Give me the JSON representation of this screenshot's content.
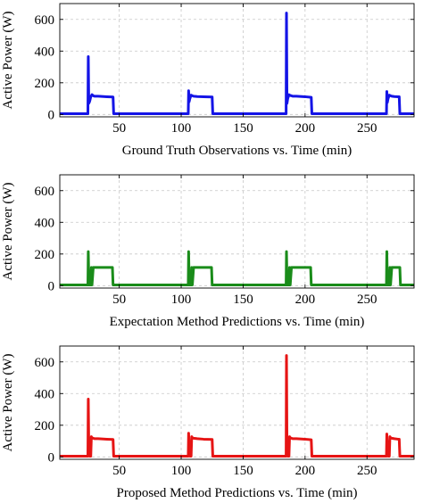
{
  "chart_data": [
    {
      "type": "line",
      "title": "",
      "xlabel": "Ground Truth Observations vs. Time (min)",
      "ylabel": "Active Power (W)",
      "xlim": [
        2,
        288
      ],
      "ylim": [
        -15,
        700
      ],
      "xticks": [
        50,
        100,
        150,
        200,
        250
      ],
      "yticks": [
        0,
        200,
        400,
        600
      ],
      "grid": true,
      "series": [
        {
          "color": "#1414e6",
          "x": [
            2,
            24.7,
            25,
            25.4,
            26,
            26.5,
            27,
            28,
            29,
            30,
            33,
            40,
            45,
            45.5,
            105.7,
            106,
            106.4,
            107,
            108,
            109,
            110,
            113,
            118,
            125,
            125.5,
            184.7,
            185,
            185.4,
            186,
            187,
            188,
            189,
            190,
            193,
            200,
            205,
            205.5,
            265.7,
            266,
            266.4,
            267,
            268,
            269,
            270,
            272,
            275,
            276,
            276.5,
            288
          ],
          "y": [
            5,
            5,
            365,
            70,
            80,
            95,
            112,
            125,
            118,
            115,
            115,
            112,
            110,
            5,
            5,
            150,
            80,
            100,
            122,
            118,
            115,
            113,
            112,
            110,
            5,
            5,
            640,
            70,
            100,
            125,
            120,
            118,
            115,
            115,
            112,
            108,
            5,
            5,
            145,
            75,
            100,
            122,
            118,
            115,
            113,
            112,
            112,
            5,
            5
          ]
        }
      ]
    },
    {
      "type": "line",
      "title": "",
      "xlabel": "Expectation Method Predictions vs. Time (min)",
      "ylabel": "Active Power (W)",
      "xlim": [
        2,
        288
      ],
      "ylim": [
        -15,
        700
      ],
      "xticks": [
        50,
        100,
        150,
        200,
        250
      ],
      "yticks": [
        0,
        200,
        400,
        600
      ],
      "grid": true,
      "series": [
        {
          "color": "#1a8c1a",
          "x": [
            2,
            24.7,
            25,
            25.5,
            27.2,
            27.5,
            28,
            29,
            30,
            44.5,
            45,
            105.7,
            106,
            106.5,
            108.2,
            108.5,
            109,
            110,
            111,
            124.5,
            125,
            184.7,
            185,
            185.5,
            187.2,
            187.5,
            188,
            189,
            190,
            204.5,
            205,
            265.7,
            266,
            266.5,
            268.2,
            268.5,
            269,
            270,
            271,
            276.5,
            277,
            288
          ],
          "y": [
            5,
            5,
            215,
            5,
            5,
            115,
            5,
            115,
            115,
            115,
            5,
            5,
            215,
            5,
            5,
            115,
            5,
            115,
            115,
            115,
            5,
            5,
            215,
            5,
            5,
            115,
            5,
            115,
            115,
            115,
            5,
            5,
            215,
            5,
            5,
            115,
            5,
            115,
            115,
            115,
            5,
            5
          ]
        }
      ]
    },
    {
      "type": "line",
      "title": "",
      "xlabel": "Proposed Method Predictions vs. Time (min)",
      "ylabel": "Active Power (W)",
      "xlim": [
        2,
        288
      ],
      "ylim": [
        -15,
        700
      ],
      "xticks": [
        50,
        100,
        150,
        200,
        250
      ],
      "yticks": [
        0,
        200,
        400,
        600
      ],
      "grid": true,
      "series": [
        {
          "color": "#e61414",
          "x": [
            2,
            24.7,
            25,
            25.4,
            26,
            27,
            27.5,
            28,
            29,
            30,
            33,
            40,
            45,
            45.5,
            105.7,
            106,
            106.4,
            107,
            108,
            108.5,
            109,
            110,
            113,
            118,
            125,
            125.5,
            184.7,
            185,
            185.4,
            186,
            187,
            187.5,
            188,
            189,
            190,
            193,
            200,
            205,
            205.5,
            265.7,
            266,
            266.4,
            267,
            268,
            268.5,
            269,
            270,
            272,
            275,
            276,
            276.5,
            288
          ],
          "y": [
            5,
            5,
            365,
            70,
            5,
            5,
            128,
            120,
            118,
            115,
            115,
            112,
            110,
            5,
            5,
            150,
            70,
            5,
            5,
            128,
            120,
            118,
            115,
            112,
            110,
            5,
            5,
            640,
            70,
            5,
            5,
            128,
            120,
            118,
            115,
            115,
            112,
            108,
            5,
            5,
            145,
            70,
            5,
            5,
            128,
            120,
            118,
            115,
            112,
            112,
            5,
            5
          ]
        }
      ]
    }
  ]
}
